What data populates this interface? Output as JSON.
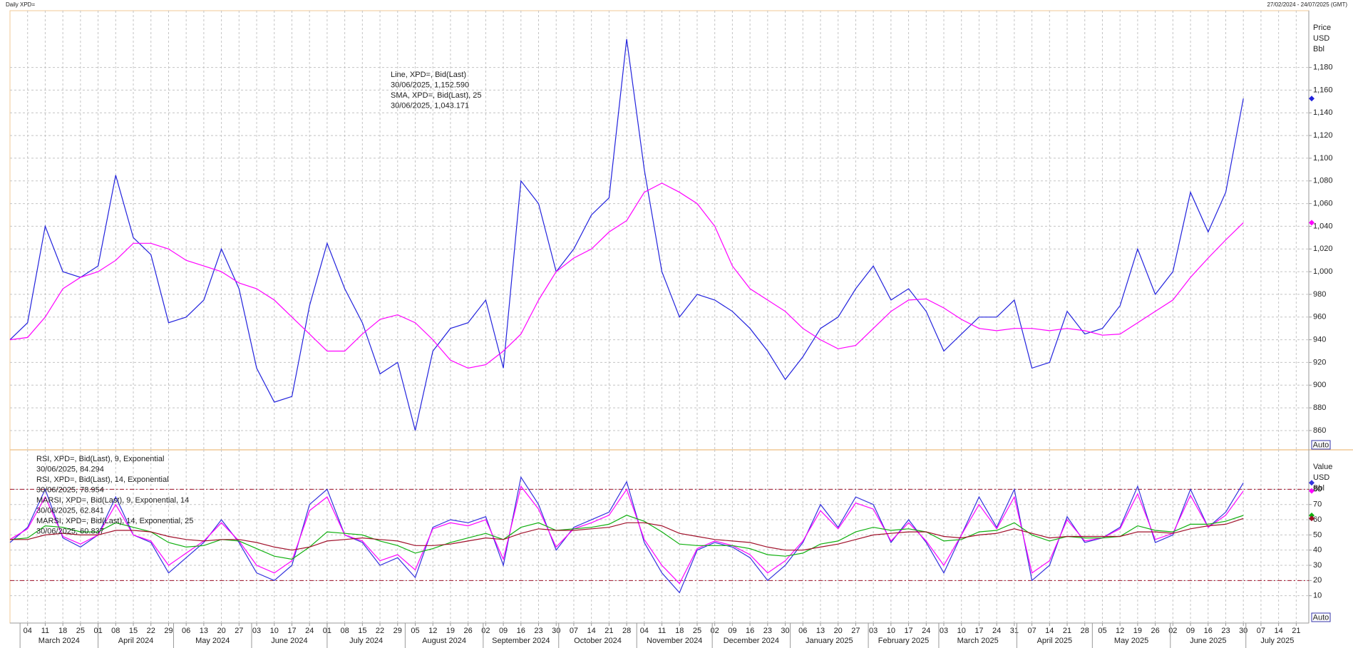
{
  "header": {
    "left": "Daily XPD=",
    "right": "27/02/2024 - 24/07/2025 (GMT)"
  },
  "ui": {
    "auto_button": "Auto"
  },
  "chart_data": [
    {
      "type": "line",
      "axis_title": [
        "Price",
        "USD",
        "Bbl"
      ],
      "x": [
        "2024-02-26",
        "2024-03-04",
        "2024-03-11",
        "2024-03-18",
        "2024-03-25",
        "2024-04-01",
        "2024-04-08",
        "2024-04-15",
        "2024-04-22",
        "2024-04-29",
        "2024-05-06",
        "2024-05-13",
        "2024-05-20",
        "2024-05-27",
        "2024-06-03",
        "2024-06-10",
        "2024-06-17",
        "2024-06-24",
        "2024-07-01",
        "2024-07-08",
        "2024-07-15",
        "2024-07-22",
        "2024-07-29",
        "2024-08-05",
        "2024-08-12",
        "2024-08-19",
        "2024-08-26",
        "2024-09-02",
        "2024-09-09",
        "2024-09-16",
        "2024-09-23",
        "2024-09-30",
        "2024-10-07",
        "2024-10-14",
        "2024-10-21",
        "2024-10-28",
        "2024-11-04",
        "2024-11-11",
        "2024-11-18",
        "2024-11-25",
        "2024-12-02",
        "2024-12-09",
        "2024-12-16",
        "2024-12-23",
        "2024-12-30",
        "2025-01-06",
        "2025-01-13",
        "2025-01-20",
        "2025-01-27",
        "2025-02-03",
        "2025-02-10",
        "2025-02-17",
        "2025-02-24",
        "2025-03-03",
        "2025-03-10",
        "2025-03-17",
        "2025-03-24",
        "2025-03-31",
        "2025-04-07",
        "2025-04-14",
        "2025-04-21",
        "2025-04-28",
        "2025-05-05",
        "2025-05-12",
        "2025-05-19",
        "2025-05-26",
        "2025-06-02",
        "2025-06-09",
        "2025-06-16",
        "2025-06-23",
        "2025-06-30"
      ],
      "xlim": [
        "2024-02-26",
        "2025-07-26"
      ],
      "xticks": [
        {
          "value": "2024-03-04",
          "label": "04"
        },
        {
          "value": "2024-03-11",
          "label": "11"
        },
        {
          "value": "2024-03-18",
          "label": "18"
        },
        {
          "value": "2024-03-25",
          "label": "25"
        },
        {
          "value": "2024-04-01",
          "label": "01"
        },
        {
          "value": "2024-04-08",
          "label": "08"
        },
        {
          "value": "2024-04-15",
          "label": "15"
        },
        {
          "value": "2024-04-22",
          "label": "22"
        },
        {
          "value": "2024-04-29",
          "label": "29"
        },
        {
          "value": "2024-05-06",
          "label": "06"
        },
        {
          "value": "2024-05-13",
          "label": "13"
        },
        {
          "value": "2024-05-20",
          "label": "20"
        },
        {
          "value": "2024-05-27",
          "label": "27"
        },
        {
          "value": "2024-06-03",
          "label": "03"
        },
        {
          "value": "2024-06-10",
          "label": "10"
        },
        {
          "value": "2024-06-17",
          "label": "17"
        },
        {
          "value": "2024-06-24",
          "label": "24"
        },
        {
          "value": "2024-07-01",
          "label": "01"
        },
        {
          "value": "2024-07-08",
          "label": "08"
        },
        {
          "value": "2024-07-15",
          "label": "15"
        },
        {
          "value": "2024-07-22",
          "label": "22"
        },
        {
          "value": "2024-07-29",
          "label": "29"
        },
        {
          "value": "2024-08-05",
          "label": "05"
        },
        {
          "value": "2024-08-12",
          "label": "12"
        },
        {
          "value": "2024-08-19",
          "label": "19"
        },
        {
          "value": "2024-08-26",
          "label": "26"
        },
        {
          "value": "2024-09-02",
          "label": "02"
        },
        {
          "value": "2024-09-09",
          "label": "09"
        },
        {
          "value": "2024-09-16",
          "label": "16"
        },
        {
          "value": "2024-09-23",
          "label": "23"
        },
        {
          "value": "2024-09-30",
          "label": "30"
        },
        {
          "value": "2024-10-07",
          "label": "07"
        },
        {
          "value": "2024-10-14",
          "label": "14"
        },
        {
          "value": "2024-10-21",
          "label": "21"
        },
        {
          "value": "2024-10-28",
          "label": "28"
        },
        {
          "value": "2024-11-04",
          "label": "04"
        },
        {
          "value": "2024-11-11",
          "label": "11"
        },
        {
          "value": "2024-11-18",
          "label": "18"
        },
        {
          "value": "2024-11-25",
          "label": "25"
        },
        {
          "value": "2024-12-02",
          "label": "02"
        },
        {
          "value": "2024-12-09",
          "label": "09"
        },
        {
          "value": "2024-12-16",
          "label": "16"
        },
        {
          "value": "2024-12-23",
          "label": "23"
        },
        {
          "value": "2024-12-30",
          "label": "30"
        },
        {
          "value": "2025-01-06",
          "label": "06"
        },
        {
          "value": "2025-01-13",
          "label": "13"
        },
        {
          "value": "2025-01-20",
          "label": "20"
        },
        {
          "value": "2025-01-27",
          "label": "27"
        },
        {
          "value": "2025-02-03",
          "label": "03"
        },
        {
          "value": "2025-02-10",
          "label": "10"
        },
        {
          "value": "2025-02-17",
          "label": "17"
        },
        {
          "value": "2025-02-24",
          "label": "24"
        },
        {
          "value": "2025-03-03",
          "label": "03"
        },
        {
          "value": "2025-03-10",
          "label": "10"
        },
        {
          "value": "2025-03-17",
          "label": "17"
        },
        {
          "value": "2025-03-24",
          "label": "24"
        },
        {
          "value": "2025-03-31",
          "label": "31"
        },
        {
          "value": "2025-04-07",
          "label": "07"
        },
        {
          "value": "2025-04-14",
          "label": "14"
        },
        {
          "value": "2025-04-21",
          "label": "21"
        },
        {
          "value": "2025-04-28",
          "label": "28"
        },
        {
          "value": "2025-05-05",
          "label": "05"
        },
        {
          "value": "2025-05-12",
          "label": "12"
        },
        {
          "value": "2025-05-19",
          "label": "19"
        },
        {
          "value": "2025-05-26",
          "label": "26"
        },
        {
          "value": "2025-06-02",
          "label": "02"
        },
        {
          "value": "2025-06-09",
          "label": "09"
        },
        {
          "value": "2025-06-16",
          "label": "16"
        },
        {
          "value": "2025-06-23",
          "label": "23"
        },
        {
          "value": "2025-06-30",
          "label": "30"
        },
        {
          "value": "2025-07-07",
          "label": "07"
        },
        {
          "value": "2025-07-14",
          "label": "14"
        },
        {
          "value": "2025-07-21",
          "label": "21"
        }
      ],
      "ylim": [
        843,
        1230
      ],
      "yticks": [
        860,
        880,
        900,
        920,
        940,
        960,
        980,
        {
          "value": 1000,
          "label": "1,000"
        },
        {
          "value": 1020,
          "label": "1,020"
        },
        {
          "value": 1040,
          "label": "1,040"
        },
        {
          "value": 1060,
          "label": "1,060"
        },
        {
          "value": 1080,
          "label": "1,080"
        },
        {
          "value": 1100,
          "label": "1,100"
        },
        {
          "value": 1120,
          "label": "1,120"
        },
        {
          "value": 1140,
          "label": "1,140"
        },
        {
          "value": 1160,
          "label": "1,160"
        },
        {
          "value": 1180,
          "label": "1,180"
        }
      ],
      "grid": true,
      "series": [
        {
          "name": "Line, XPD=, Bid(Last)",
          "detail": "30/06/2025, 1,152.590",
          "color": "#2222dd",
          "values": [
            940,
            955,
            1040,
            1000,
            995,
            1005,
            1085,
            1030,
            1015,
            955,
            960,
            975,
            1020,
            985,
            915,
            885,
            890,
            970,
            1025,
            985,
            955,
            910,
            920,
            860,
            930,
            950,
            955,
            975,
            915,
            1080,
            1060,
            1000,
            1020,
            1050,
            1065,
            1205,
            1090,
            1000,
            960,
            980,
            975,
            965,
            950,
            930,
            905,
            925,
            950,
            960,
            985,
            1005,
            975,
            985,
            965,
            930,
            945,
            960,
            960,
            975,
            915,
            920,
            965,
            945,
            950,
            970,
            1020,
            980,
            1000,
            1070,
            1035,
            1070,
            1152.59
          ]
        },
        {
          "name": "SMA, XPD=, Bid(Last),  25",
          "detail": "30/06/2025, 1,043.171",
          "color": "#ff00ff",
          "values": [
            940,
            942,
            960,
            985,
            995,
            1000,
            1010,
            1025,
            1025,
            1020,
            1010,
            1005,
            1000,
            990,
            985,
            975,
            960,
            945,
            930,
            930,
            945,
            958,
            962,
            955,
            940,
            922,
            915,
            918,
            930,
            945,
            975,
            1000,
            1012,
            1020,
            1035,
            1045,
            1070,
            1078,
            1070,
            1060,
            1040,
            1005,
            985,
            975,
            965,
            950,
            940,
            932,
            935,
            950,
            965,
            975,
            976,
            968,
            958,
            950,
            948,
            950,
            950,
            948,
            950,
            948,
            944,
            945,
            955,
            965,
            975,
            995,
            1012,
            1028,
            1043.171
          ]
        }
      ]
    },
    {
      "type": "line",
      "axis_title": [
        "Value",
        "USD",
        "Bbl"
      ],
      "x": [
        "2024-02-26",
        "2024-03-04",
        "2024-03-11",
        "2024-03-18",
        "2024-03-25",
        "2024-04-01",
        "2024-04-08",
        "2024-04-15",
        "2024-04-22",
        "2024-04-29",
        "2024-05-06",
        "2024-05-13",
        "2024-05-20",
        "2024-05-27",
        "2024-06-03",
        "2024-06-10",
        "2024-06-17",
        "2024-06-24",
        "2024-07-01",
        "2024-07-08",
        "2024-07-15",
        "2024-07-22",
        "2024-07-29",
        "2024-08-05",
        "2024-08-12",
        "2024-08-19",
        "2024-08-26",
        "2024-09-02",
        "2024-09-09",
        "2024-09-16",
        "2024-09-23",
        "2024-09-30",
        "2024-10-07",
        "2024-10-14",
        "2024-10-21",
        "2024-10-28",
        "2024-11-04",
        "2024-11-11",
        "2024-11-18",
        "2024-11-25",
        "2024-12-02",
        "2024-12-09",
        "2024-12-16",
        "2024-12-23",
        "2024-12-30",
        "2025-01-06",
        "2025-01-13",
        "2025-01-20",
        "2025-01-27",
        "2025-02-03",
        "2025-02-10",
        "2025-02-17",
        "2025-02-24",
        "2025-03-03",
        "2025-03-10",
        "2025-03-17",
        "2025-03-24",
        "2025-03-31",
        "2025-04-07",
        "2025-04-14",
        "2025-04-21",
        "2025-04-28",
        "2025-05-05",
        "2025-05-12",
        "2025-05-19",
        "2025-05-26",
        "2025-06-02",
        "2025-06-09",
        "2025-06-16",
        "2025-06-23",
        "2025-06-30"
      ],
      "xlim": [
        "2024-02-26",
        "2025-07-26"
      ],
      "months": [
        "March 2024",
        "April 2024",
        "May 2024",
        "June 2024",
        "July 2024",
        "August 2024",
        "September 2024",
        "October 2024",
        "November 2024",
        "December 2024",
        "January 2025",
        "February 2025",
        "March 2025",
        "April 2025",
        "May 2025",
        "June 2025",
        "July 2025"
      ],
      "ylim": [
        -8,
        106
      ],
      "yticks": [
        10,
        20,
        30,
        40,
        50,
        60,
        70,
        80
      ],
      "hlines": [
        80,
        20
      ],
      "hline_color": "#a0102a",
      "grid": true,
      "series": [
        {
          "name": "RSI, XPD=, Bid(Last),  9, Exponential",
          "detail": "30/06/2025, 84.294",
          "color": "#3333dd",
          "values": [
            45,
            55,
            80,
            48,
            42,
            50,
            75,
            50,
            45,
            25,
            35,
            45,
            60,
            45,
            25,
            20,
            30,
            70,
            80,
            50,
            45,
            30,
            35,
            22,
            55,
            60,
            58,
            62,
            30,
            88,
            70,
            40,
            55,
            60,
            65,
            85,
            45,
            25,
            12,
            40,
            45,
            42,
            35,
            20,
            30,
            45,
            70,
            55,
            75,
            70,
            45,
            60,
            45,
            25,
            50,
            75,
            55,
            80,
            20,
            30,
            62,
            45,
            48,
            55,
            82,
            45,
            50,
            80,
            55,
            65,
            84.294
          ]
        },
        {
          "name": "RSI, XPD=, Bid(Last),  14, Exponential",
          "detail": "30/06/2025, 78.954",
          "color": "#ff00ff",
          "values": [
            47,
            54,
            75,
            49,
            44,
            50,
            70,
            50,
            46,
            30,
            38,
            46,
            58,
            46,
            30,
            25,
            33,
            66,
            75,
            50,
            46,
            33,
            37,
            27,
            54,
            58,
            56,
            60,
            34,
            82,
            67,
            42,
            54,
            58,
            63,
            80,
            47,
            30,
            18,
            41,
            46,
            43,
            37,
            25,
            33,
            46,
            66,
            54,
            71,
            67,
            46,
            58,
            46,
            30,
            50,
            70,
            54,
            75,
            25,
            33,
            60,
            46,
            48,
            54,
            77,
            47,
            51,
            76,
            55,
            63,
            78.954
          ]
        },
        {
          "name": "MARSI, XPD=, Bid(Last),  9, Exponential, 14",
          "detail": "30/06/2025, 62.841",
          "color": "#10b010",
          "values": [
            47,
            48,
            56,
            55,
            52,
            52,
            58,
            55,
            52,
            45,
            42,
            43,
            47,
            46,
            41,
            36,
            34,
            42,
            52,
            51,
            50,
            46,
            43,
            38,
            41,
            45,
            48,
            51,
            47,
            55,
            58,
            53,
            54,
            55,
            57,
            63,
            59,
            52,
            44,
            43,
            43,
            43,
            41,
            37,
            36,
            38,
            44,
            46,
            52,
            55,
            53,
            54,
            52,
            46,
            47,
            52,
            53,
            58,
            50,
            46,
            49,
            48,
            48,
            49,
            56,
            53,
            52,
            57,
            57,
            59,
            62.841
          ]
        },
        {
          "name": "MARSI, XPD=, Bid(Last),  14, Exponential, 25",
          "detail": "30/06/2025, 60.837",
          "color": "#a0102a",
          "values": [
            47,
            47,
            50,
            51,
            50,
            50,
            53,
            53,
            52,
            49,
            47,
            46,
            47,
            47,
            45,
            42,
            40,
            42,
            46,
            47,
            48,
            47,
            46,
            43,
            43,
            44,
            46,
            48,
            47,
            51,
            54,
            53,
            53,
            54,
            55,
            58,
            58,
            56,
            51,
            49,
            47,
            46,
            45,
            42,
            40,
            40,
            42,
            44,
            47,
            50,
            51,
            52,
            52,
            49,
            48,
            50,
            51,
            54,
            51,
            48,
            49,
            49,
            49,
            49,
            52,
            52,
            51,
            54,
            56,
            57,
            60.837
          ]
        }
      ]
    }
  ]
}
